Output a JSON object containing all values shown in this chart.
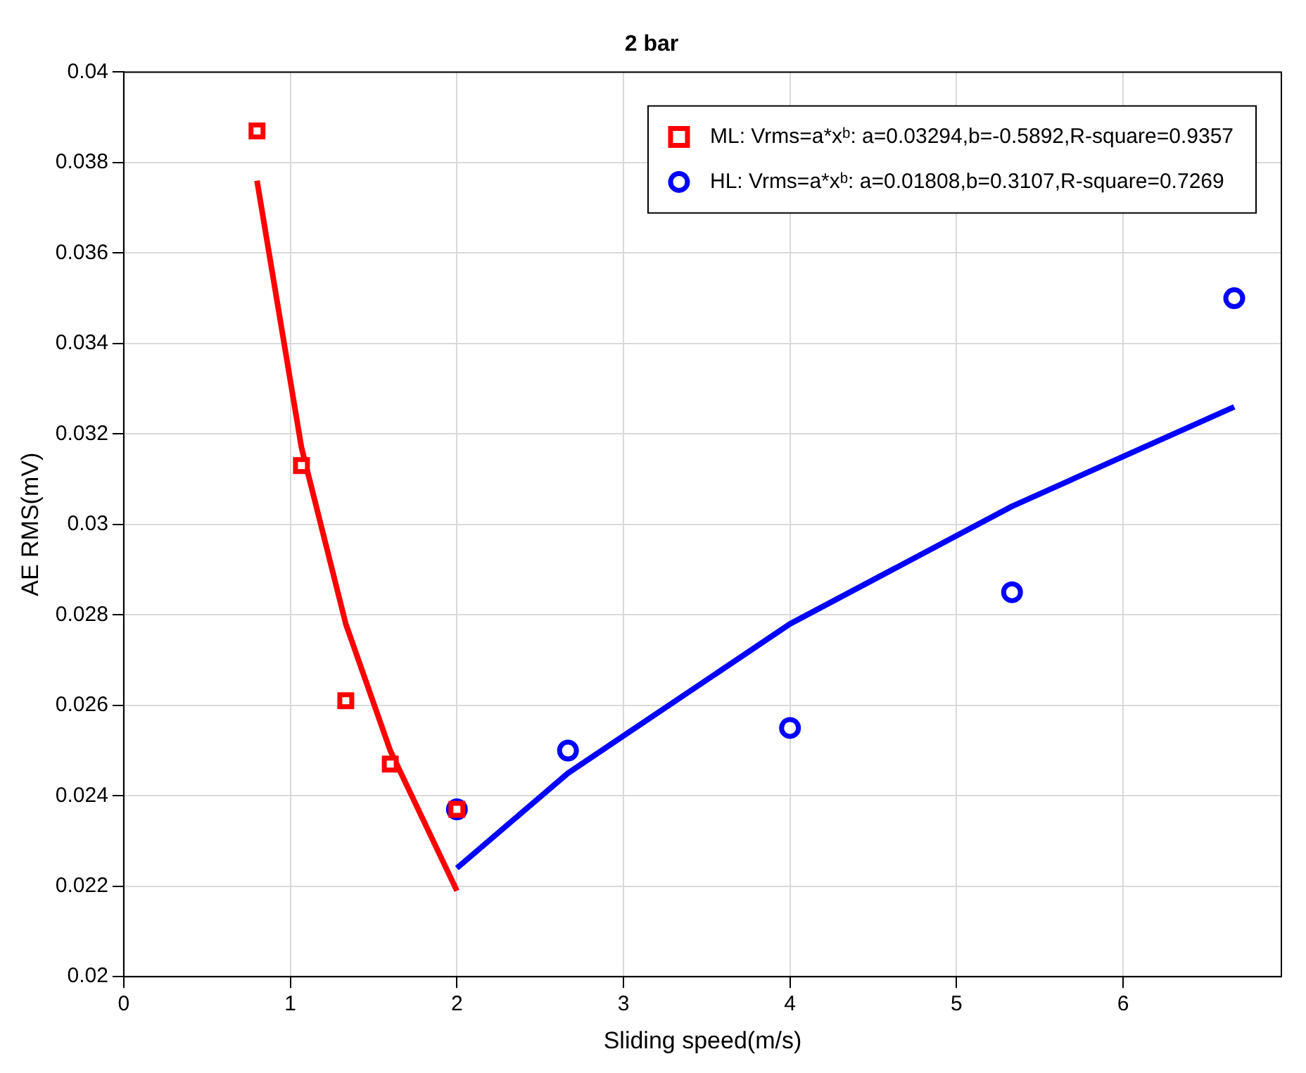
{
  "chart_data": {
    "type": "scatter",
    "title": "2 bar",
    "xlabel": "Sliding speed(m/s)",
    "ylabel": "AE RMS(mV)",
    "xlim": [
      0,
      6.95
    ],
    "xticks": [
      0,
      1,
      2,
      3,
      4,
      5,
      6
    ],
    "ylim": [
      0.02,
      0.04
    ],
    "yticks": [
      0.02,
      0.022,
      0.024,
      0.026,
      0.028,
      0.03,
      0.032,
      0.034,
      0.036,
      0.038,
      0.04
    ],
    "grid": true,
    "legend": "top right",
    "series": [
      {
        "type": "scatter",
        "name": "ML: Vrms=a*xᵇ: a=0.03294,b=-0.5892,R-square=0.9357",
        "color": "#ff0000",
        "marker": "square",
        "x": [
          0.8,
          1.067,
          1.333,
          1.6,
          2
        ],
        "values": [
          0.0387,
          0.0313,
          0.0261,
          0.0247,
          0.0237
        ]
      },
      {
        "type": "scatter",
        "name": "HL: Vrms=a*xᵇ: a=0.01808,b=0.3107,R-square=0.7269",
        "color": "#0000ff",
        "marker": "circle",
        "x": [
          2,
          2.667,
          4,
          5.333,
          6.667
        ],
        "values": [
          0.0237,
          0.025,
          0.0255,
          0.0285,
          0.035
        ]
      },
      {
        "type": "line",
        "color": "#ff0000",
        "marker": "none",
        "x": [
          0.8,
          1.067,
          1.333,
          1.6,
          2
        ],
        "values": [
          0.0376,
          0.0317,
          0.0278,
          0.025,
          0.0219
        ]
      },
      {
        "type": "line",
        "color": "#0000ff",
        "marker": "none",
        "x": [
          2,
          2.667,
          4,
          5.333,
          6.667
        ],
        "values": [
          0.0224,
          0.0245,
          0.0278,
          0.0304,
          0.0326
        ]
      }
    ]
  }
}
